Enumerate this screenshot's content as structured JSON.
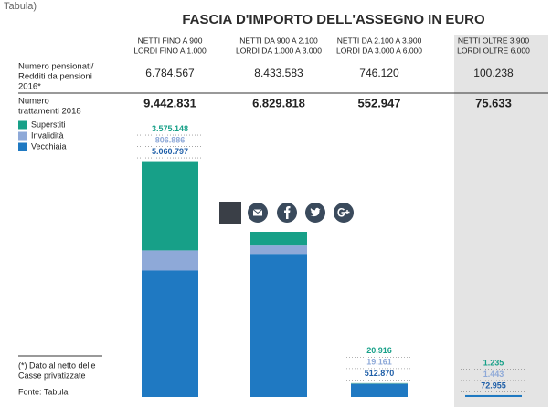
{
  "source_fragment": "Tabula)",
  "chart_data": {
    "type": "bar",
    "stacked": true,
    "title": "FASCIA D'IMPORTO DELL'ASSEGNO IN EURO",
    "categories": [
      "NETTI FINO A 900",
      "NETTI DA 900 A 2.100",
      "NETTI DA 2.100 A 3.900",
      "NETTI OLTRE 3.900"
    ],
    "categories_line2": [
      "LORDI FINO A 1.000",
      "LORDI DA 1.000 A 3.000",
      "LORDI DA 3.000 A 6.000",
      "LORDI OLTRE 6.000"
    ],
    "table_rows": [
      {
        "label": [
          "Numero pensionati/",
          "Redditi da pensioni",
          "2016*"
        ],
        "cells": [
          "6.784.567",
          "8.433.583",
          "746.120",
          "100.238"
        ]
      },
      {
        "label": [
          "Numero",
          "trattamenti 2018"
        ],
        "cells": [
          "9.442.831",
          "6.829.818",
          "552.947",
          "75.633"
        ]
      }
    ],
    "series": [
      {
        "name": "Superstiti",
        "color": "#17a088",
        "label_color": "#17a088",
        "values": [
          3575148,
          767000,
          20916,
          1235
        ],
        "value_labels": [
          "3.575.148",
          null,
          "20.916",
          "1.235"
        ]
      },
      {
        "name": "Invalidità",
        "color": "#8ea9d8",
        "label_color": "#8ea9d8",
        "values": [
          806886,
          330000,
          19161,
          1443
        ],
        "value_labels": [
          "806.886",
          null,
          "19.161",
          "1.443"
        ]
      },
      {
        "name": "Vecchiaia",
        "color": "#1f79c2",
        "label_color": "#1f5fa8",
        "values": [
          5060797,
          5730000,
          512870,
          72955
        ],
        "value_labels": [
          "5.060.797",
          null,
          "512.870",
          "72.955"
        ]
      }
    ],
    "ylim": [
      0,
      9500000
    ],
    "footnote": [
      "(*) Dato al netto delle",
      "Casse privatizzate"
    ],
    "source": "Fonte: Tabula"
  }
}
